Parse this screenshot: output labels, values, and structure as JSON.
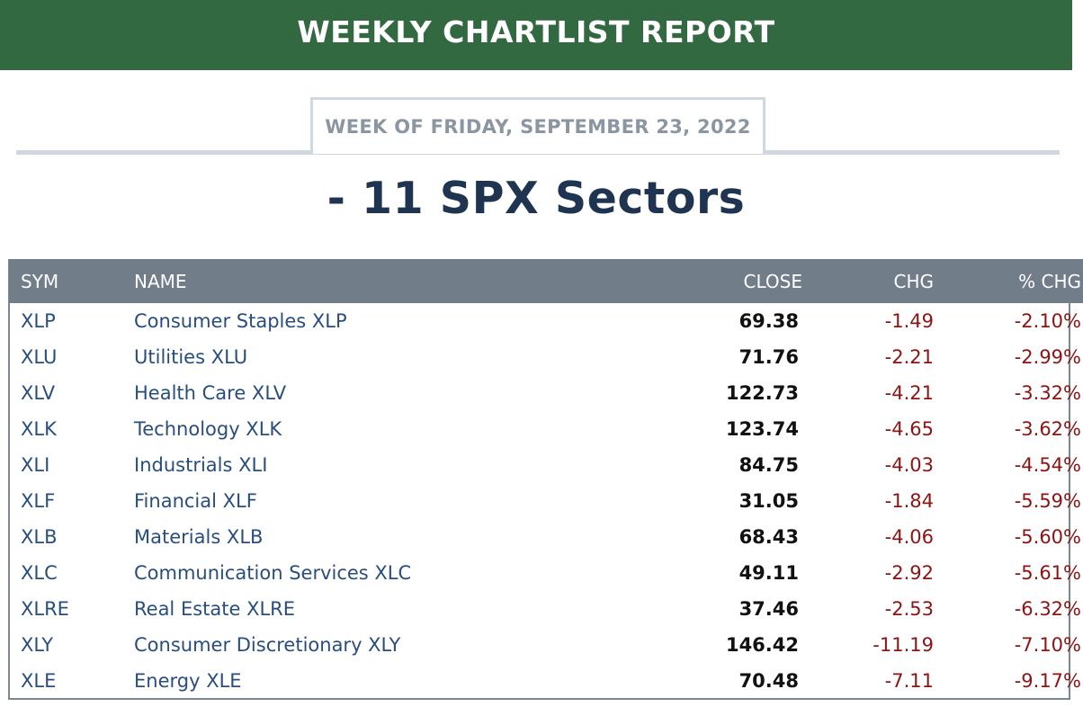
{
  "header": {
    "title": "WEEKLY CHARTLIST REPORT",
    "week_label": "WEEK OF FRIDAY, SEPTEMBER 23, 2022",
    "section_title": "- 11 SPX Sectors"
  },
  "colors": {
    "banner": "#336940",
    "table_header": "#727d8a",
    "link_blue": "#294e7e",
    "negative_red": "#8b1414",
    "title_navy": "#1f3450"
  },
  "table": {
    "columns": [
      "SYM",
      "NAME",
      "CLOSE",
      "CHG",
      "% CHG"
    ],
    "rows": [
      {
        "sym": "XLP",
        "name": "Consumer Staples XLP",
        "close": "69.38",
        "chg": "-1.49",
        "pct": "-2.10%"
      },
      {
        "sym": "XLU",
        "name": "Utilities XLU",
        "close": "71.76",
        "chg": "-2.21",
        "pct": "-2.99%"
      },
      {
        "sym": "XLV",
        "name": "Health Care XLV",
        "close": "122.73",
        "chg": "-4.21",
        "pct": "-3.32%"
      },
      {
        "sym": "XLK",
        "name": "Technology XLK",
        "close": "123.74",
        "chg": "-4.65",
        "pct": "-3.62%"
      },
      {
        "sym": "XLI",
        "name": "Industrials XLI",
        "close": "84.75",
        "chg": "-4.03",
        "pct": "-4.54%"
      },
      {
        "sym": "XLF",
        "name": "Financial XLF",
        "close": "31.05",
        "chg": "-1.84",
        "pct": "-5.59%"
      },
      {
        "sym": "XLB",
        "name": "Materials XLB",
        "close": "68.43",
        "chg": "-4.06",
        "pct": "-5.60%"
      },
      {
        "sym": "XLC",
        "name": "Communication Services XLC",
        "close": "49.11",
        "chg": "-2.92",
        "pct": "-5.61%"
      },
      {
        "sym": "XLRE",
        "name": "Real Estate XLRE",
        "close": "37.46",
        "chg": "-2.53",
        "pct": "-6.32%"
      },
      {
        "sym": "XLY",
        "name": "Consumer Discretionary XLY",
        "close": "146.42",
        "chg": "-11.19",
        "pct": "-7.10%"
      },
      {
        "sym": "XLE",
        "name": "Energy XLE",
        "close": "70.48",
        "chg": "-7.11",
        "pct": "-9.17%"
      }
    ]
  }
}
